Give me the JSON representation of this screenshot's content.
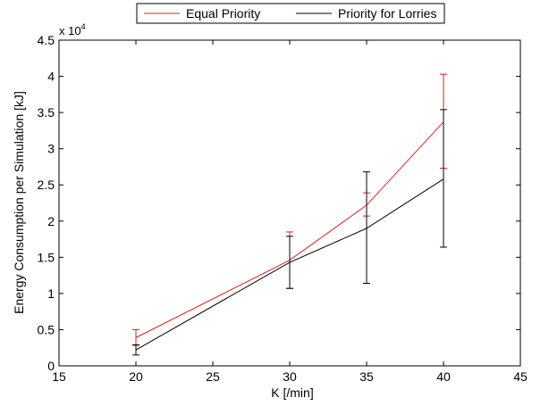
{
  "chart_data": {
    "type": "line",
    "xlabel": "K [/min]",
    "ylabel": "Energy Consumption per Simulation [kJ]",
    "y_multiplier": {
      "base": "x 10",
      "exponent": "4"
    },
    "xlim": [
      15,
      45
    ],
    "ylim": [
      0,
      45000
    ],
    "x_ticks": [
      15,
      20,
      25,
      30,
      35,
      40,
      45
    ],
    "x_tick_labels": [
      "15",
      "20",
      "25",
      "30",
      "35",
      "40",
      "45"
    ],
    "y_ticks": [
      0,
      5000,
      10000,
      15000,
      20000,
      25000,
      30000,
      35000,
      40000,
      45000
    ],
    "y_tick_labels": [
      "0",
      "0.5",
      "1",
      "1.5",
      "2",
      "2.5",
      "3",
      "3.5",
      "4",
      "4.5"
    ],
    "grid": false,
    "legend_position": "top-center",
    "series": [
      {
        "name": "Equal Priority",
        "color": "#d62020",
        "x": [
          20,
          30,
          35,
          40
        ],
        "y": [
          3900,
          14600,
          22200,
          33700
        ],
        "err_low": [
          2850,
          10700,
          20700,
          27300
        ],
        "err_high": [
          5000,
          18500,
          23900,
          40300
        ]
      },
      {
        "name": "Priority for Lorries",
        "color": "#000000",
        "x": [
          20,
          30,
          35,
          40
        ],
        "y": [
          2200,
          14300,
          19000,
          25800
        ],
        "err_low": [
          1500,
          10700,
          11400,
          16400
        ],
        "err_high": [
          2900,
          17900,
          26800,
          35400
        ]
      }
    ]
  }
}
